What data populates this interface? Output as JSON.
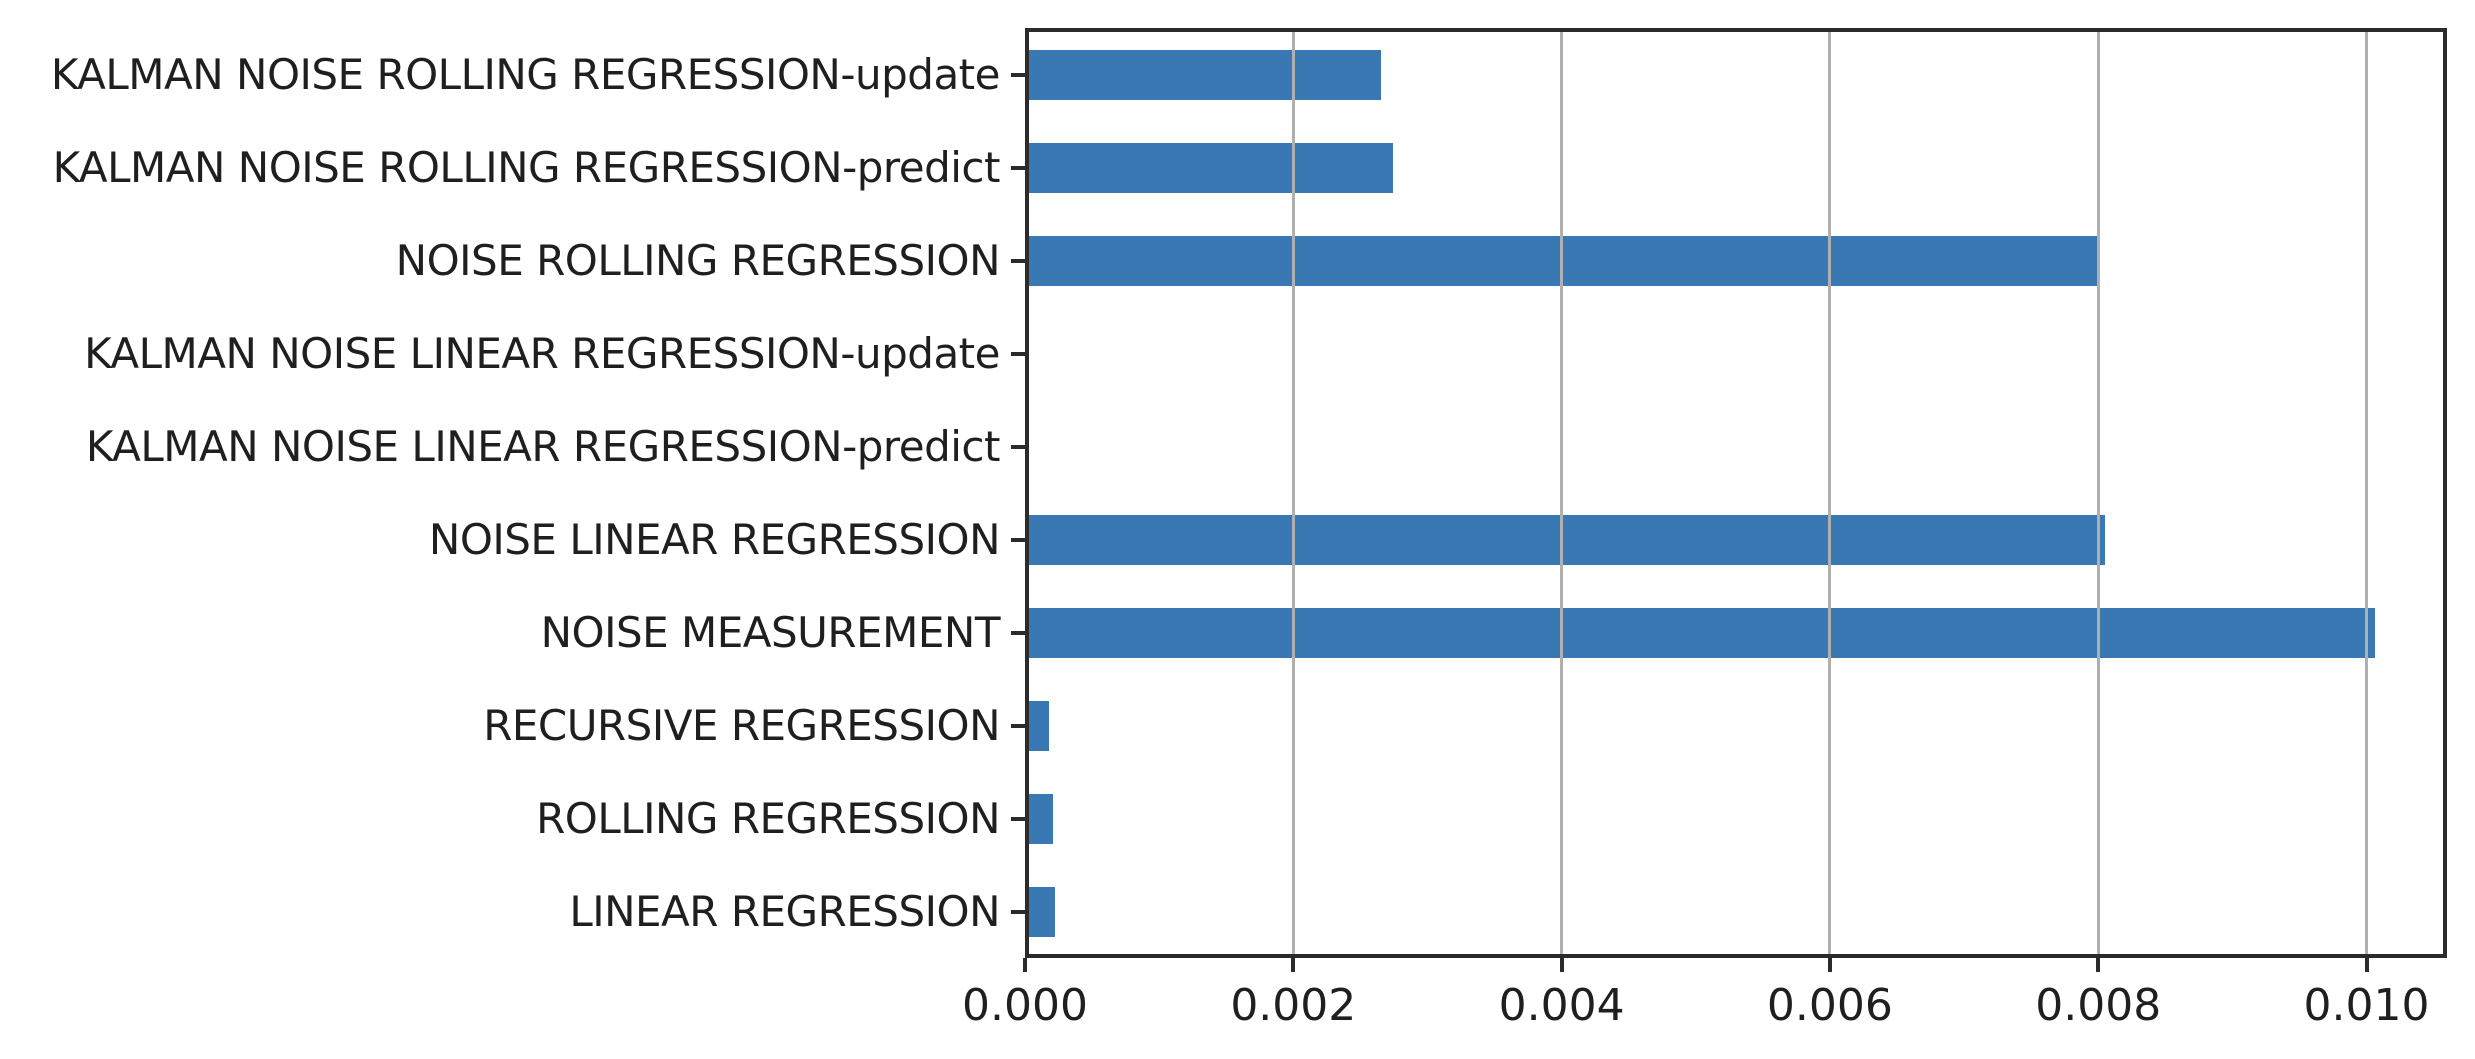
{
  "chart_data": {
    "type": "bar",
    "orientation": "horizontal",
    "title": "",
    "xlabel": "",
    "ylabel": "",
    "categories": [
      "KALMAN NOISE ROLLING REGRESSION-update",
      "KALMAN NOISE ROLLING REGRESSION-predict",
      "NOISE ROLLING REGRESSION",
      "KALMAN NOISE LINEAR REGRESSION-update",
      "KALMAN NOISE LINEAR REGRESSION-predict",
      "NOISE LINEAR REGRESSION",
      "NOISE MEASUREMENT",
      "RECURSIVE REGRESSION",
      "ROLLING REGRESSION",
      "LINEAR REGRESSION"
    ],
    "values": [
      0.00265,
      0.00274,
      0.008,
      3e-06,
      3e-06,
      0.00805,
      0.01006,
      0.00018,
      0.00021,
      0.00022
    ],
    "xlim": [
      0,
      0.0106
    ],
    "xticks": [
      {
        "value": 0.0,
        "label": "0.000"
      },
      {
        "value": 0.002,
        "label": "0.002"
      },
      {
        "value": 0.004,
        "label": "0.004"
      },
      {
        "value": 0.006,
        "label": "0.006"
      },
      {
        "value": 0.008,
        "label": "0.008"
      },
      {
        "value": 0.01,
        "label": "0.010"
      }
    ],
    "grid": "vertical-gridlines-at-xticks-drawn-over-bars",
    "legend": "none",
    "bar_height_fraction": 0.54
  },
  "colors": {
    "bar": "#3a78b4",
    "spine": "#2b2b2b",
    "grid": "#b0b0b0",
    "text": "#1f1f1f",
    "background": "#ffffff"
  }
}
